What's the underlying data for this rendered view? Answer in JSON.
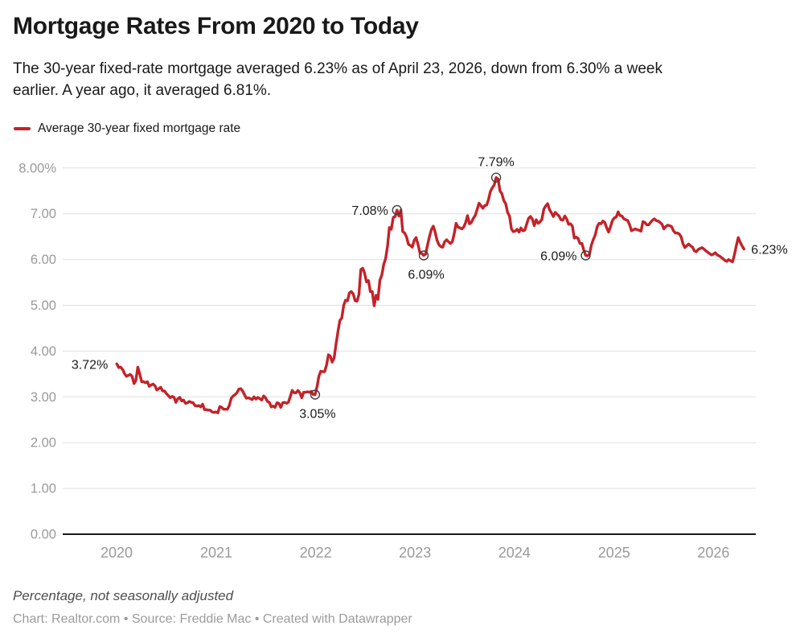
{
  "header": {
    "title": "Mortgage Rates From 2020 to Today",
    "subtitle_lines": [
      "The 30-year fixed-rate mortgage averaged 6.23% as of April 23, 2026, down from 6.30% a week",
      "earlier. A year ago, it averaged 6.81%."
    ]
  },
  "legend": {
    "label": "Average 30-year fixed mortgage rate"
  },
  "footer": {
    "note": "Percentage, not seasonally adjusted",
    "credits": "Chart: Realtor.com • Source: Freddie Mac • Created with Datawrapper"
  },
  "colors": {
    "line": "#c42229",
    "axis_text": "#9a9a9a",
    "grid": "#e0e0e0",
    "baseline": "#1a1a1a",
    "annotation_text": "#1a1a1a",
    "marker_stroke": "#3f3f3f",
    "background": "#ffffff"
  },
  "chart_data": {
    "type": "line",
    "title": "Mortgage Rates From 2020 to Today",
    "ylabel": "",
    "xlabel": "",
    "unit": "%",
    "frequency": "weekly",
    "start_date": "2020-01-02",
    "end_date": "2026-04-23",
    "ylim": [
      0,
      8
    ],
    "grid": "horizontal",
    "legend_position": "top-left",
    "y_ticks": [
      {
        "value": 8,
        "label": "8.00%"
      },
      {
        "value": 7,
        "label": "7.00"
      },
      {
        "value": 6,
        "label": "6.00"
      },
      {
        "value": 5,
        "label": "5.00"
      },
      {
        "value": 4,
        "label": "4.00"
      },
      {
        "value": 3,
        "label": "3.00"
      },
      {
        "value": 2,
        "label": "2.00"
      },
      {
        "value": 1,
        "label": "1.00"
      },
      {
        "value": 0,
        "label": "0.00"
      }
    ],
    "x_ticks": [
      {
        "year": 2020,
        "label": "2020"
      },
      {
        "year": 2021,
        "label": "2021"
      },
      {
        "year": 2022,
        "label": "2022"
      },
      {
        "year": 2023,
        "label": "2023"
      },
      {
        "year": 2024,
        "label": "2024"
      },
      {
        "year": 2025,
        "label": "2025"
      },
      {
        "year": 2026,
        "label": "2026"
      }
    ],
    "series": [
      {
        "name": "Average 30-year fixed mortgage rate",
        "color": "#c42229",
        "values": [
          3.72,
          3.64,
          3.65,
          3.6,
          3.51,
          3.45,
          3.47,
          3.49,
          3.45,
          3.29,
          3.36,
          3.65,
          3.5,
          3.33,
          3.33,
          3.31,
          3.33,
          3.23,
          3.26,
          3.28,
          3.24,
          3.15,
          3.18,
          3.21,
          3.13,
          3.13,
          3.07,
          3.03,
          2.98,
          3.01,
          2.99,
          2.88,
          2.96,
          2.99,
          2.91,
          2.93,
          2.86,
          2.87,
          2.9,
          2.88,
          2.87,
          2.81,
          2.8,
          2.81,
          2.78,
          2.84,
          2.72,
          2.72,
          2.71,
          2.71,
          2.67,
          2.66,
          2.67,
          2.65,
          2.79,
          2.77,
          2.73,
          2.73,
          2.73,
          2.81,
          2.97,
          3.02,
          3.05,
          3.09,
          3.17,
          3.18,
          3.13,
          3.04,
          2.97,
          2.98,
          2.96,
          2.94,
          3.0,
          2.95,
          2.99,
          2.96,
          2.93,
          3.02,
          2.98,
          2.9,
          2.88,
          2.78,
          2.8,
          2.77,
          2.87,
          2.86,
          2.77,
          2.87,
          2.88,
          2.86,
          2.88,
          3.01,
          3.14,
          3.09,
          3.09,
          3.14,
          3.09,
          2.98,
          3.1,
          3.1,
          3.11,
          3.1,
          3.12,
          3.05,
          3.05,
          3.22,
          3.45,
          3.56,
          3.55,
          3.55,
          3.69,
          3.92,
          3.89,
          3.76,
          3.85,
          4.16,
          4.42,
          4.67,
          4.72,
          5.0,
          5.11,
          5.1,
          5.27,
          5.3,
          5.25,
          5.1,
          5.09,
          5.23,
          5.78,
          5.81,
          5.7,
          5.51,
          5.54,
          5.3,
          5.3,
          4.99,
          5.22,
          5.13,
          5.55,
          5.66,
          5.89,
          6.02,
          6.29,
          6.7,
          6.66,
          6.92,
          6.94,
          7.08,
          6.95,
          7.08,
          6.61,
          6.58,
          6.49,
          6.33,
          6.31,
          6.27,
          6.42,
          6.48,
          6.33,
          6.15,
          6.13,
          6.09,
          6.12,
          6.32,
          6.5,
          6.65,
          6.73,
          6.6,
          6.42,
          6.32,
          6.28,
          6.27,
          6.39,
          6.43,
          6.39,
          6.35,
          6.39,
          6.57,
          6.79,
          6.71,
          6.69,
          6.67,
          6.71,
          6.81,
          6.96,
          6.78,
          6.81,
          6.9,
          6.96,
          7.09,
          7.23,
          7.18,
          7.12,
          7.18,
          7.19,
          7.31,
          7.49,
          7.57,
          7.63,
          7.79,
          7.76,
          7.5,
          7.44,
          7.29,
          7.22,
          7.03,
          6.95,
          6.67,
          6.61,
          6.62,
          6.66,
          6.6,
          6.69,
          6.63,
          6.64,
          6.77,
          6.9,
          6.94,
          6.88,
          6.74,
          6.87,
          6.79,
          6.82,
          6.88,
          7.1,
          7.17,
          7.22,
          7.09,
          7.02,
          6.94,
          7.03,
          6.99,
          6.95,
          6.87,
          6.86,
          6.95,
          6.89,
          6.77,
          6.78,
          6.73,
          6.47,
          6.49,
          6.46,
          6.35,
          6.35,
          6.2,
          6.09,
          6.08,
          6.12,
          6.32,
          6.44,
          6.54,
          6.72,
          6.79,
          6.78,
          6.84,
          6.81,
          6.69,
          6.6,
          6.72,
          6.85,
          6.91,
          6.93,
          7.04,
          6.96,
          6.95,
          6.89,
          6.87,
          6.85,
          6.76,
          6.63,
          6.65,
          6.67,
          6.65,
          6.64,
          6.62,
          6.83,
          6.81,
          6.76,
          6.76,
          6.81,
          6.86,
          6.89,
          6.85,
          6.84,
          6.81,
          6.77,
          6.67,
          6.72,
          6.75,
          6.74,
          6.72,
          6.63,
          6.58,
          6.58,
          6.56,
          6.5,
          6.35,
          6.26,
          6.3,
          6.34,
          6.3,
          6.27,
          6.19,
          6.17,
          6.22,
          6.24,
          6.26,
          6.23,
          6.19,
          6.16,
          6.13,
          6.1,
          6.12,
          6.15,
          6.1,
          6.08,
          6.05,
          6.02,
          5.98,
          5.96,
          6.0,
          5.97,
          5.95,
          6.1,
          6.3,
          6.48,
          6.38,
          6.3,
          6.23
        ]
      }
    ],
    "annotations": [
      {
        "index": 0,
        "date": "2020-01-02",
        "value": 3.72,
        "label": "3.72%",
        "marker": false,
        "placement": "left"
      },
      {
        "index": 104,
        "date": "2021-12-30",
        "value": 3.05,
        "label": "3.05%",
        "marker": true,
        "placement": "below"
      },
      {
        "index": 147,
        "date": "2022-10-27",
        "value": 7.08,
        "label": "7.08%",
        "marker": true,
        "placement": "left"
      },
      {
        "index": 161,
        "date": "2023-02-02",
        "value": 6.09,
        "label": "6.09%",
        "marker": true,
        "placement": "below"
      },
      {
        "index": 199,
        "date": "2023-10-26",
        "value": 7.79,
        "label": "7.79%",
        "marker": true,
        "placement": "above"
      },
      {
        "index": 246,
        "date": "2024-09-19",
        "value": 6.09,
        "label": "6.09%",
        "marker": true,
        "placement": "left"
      },
      {
        "index": 329,
        "date": "2026-04-23",
        "value": 6.23,
        "label": "6.23%",
        "marker": false,
        "placement": "right"
      }
    ]
  }
}
